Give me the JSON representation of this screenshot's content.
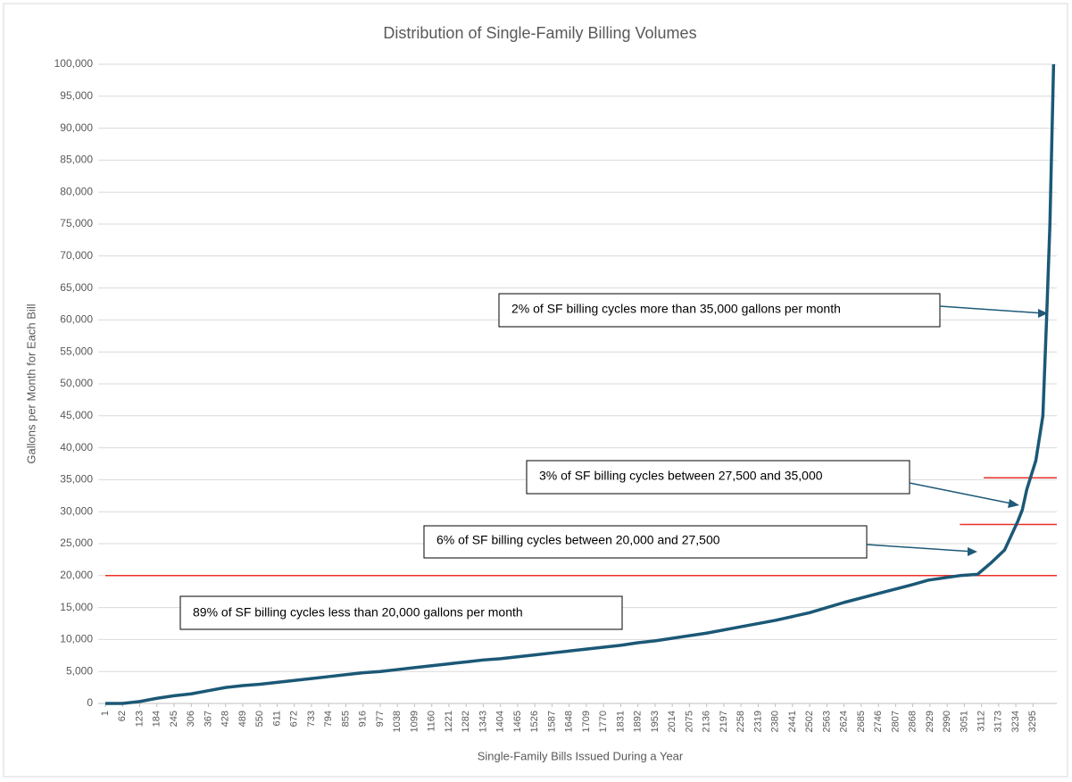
{
  "chart_data": {
    "type": "line",
    "title": "Distribution of Single-Family Billing Volumes",
    "x_label": "Single-Family Bills Issued During a Year",
    "y_label": "Gallons per Month for Each Bill",
    "color": "#1b5876",
    "grid": true,
    "x": [
      1,
      62,
      123,
      184,
      245,
      306,
      367,
      428,
      489,
      550,
      611,
      672,
      733,
      794,
      855,
      916,
      977,
      1038,
      1099,
      1160,
      1221,
      1282,
      1343,
      1404,
      1465,
      1526,
      1587,
      1648,
      1709,
      1770,
      1831,
      1892,
      1953,
      2014,
      2136,
      2258,
      2380,
      2502,
      2624,
      2746,
      2868,
      2924,
      3035,
      3098,
      3146,
      3194,
      3241,
      3257,
      3273,
      3305,
      3330,
      3343,
      3355,
      3368
    ],
    "values": [
      0,
      0,
      300,
      800,
      1200,
      1500,
      2000,
      2500,
      2800,
      3000,
      3300,
      3600,
      3900,
      4200,
      4500,
      4800,
      5000,
      5300,
      5600,
      5900,
      6200,
      6500,
      6800,
      7000,
      7300,
      7600,
      7900,
      8200,
      8500,
      8800,
      9100,
      9500,
      9800,
      10200,
      11000,
      12000,
      13000,
      14200,
      15800,
      17200,
      18600,
      19300,
      20000,
      20200,
      22000,
      24000,
      28500,
      30300,
      33500,
      38000,
      45000,
      60000,
      75000,
      100000
    ],
    "xlim": [
      1,
      3370
    ],
    "xticks": [
      1,
      62,
      123,
      184,
      245,
      306,
      367,
      428,
      489,
      550,
      611,
      672,
      733,
      794,
      855,
      916,
      977,
      1038,
      1099,
      1160,
      1221,
      1282,
      1343,
      1404,
      1465,
      1526,
      1587,
      1648,
      1709,
      1770,
      1831,
      1892,
      1953,
      2014,
      2075,
      2136,
      2197,
      2258,
      2319,
      2380,
      2441,
      2502,
      2563,
      2624,
      2685,
      2746,
      2807,
      2868,
      2929,
      2990,
      3051,
      3112,
      3173,
      3234,
      3295
    ],
    "ylim": [
      0,
      100000
    ],
    "yticks": [
      0,
      {
        "value": 5000,
        "label": "5,000"
      },
      {
        "value": 10000,
        "label": "10,000"
      },
      {
        "value": 15000,
        "label": "15,000"
      },
      {
        "value": 20000,
        "label": "20,000"
      },
      {
        "value": 25000,
        "label": "25,000"
      },
      {
        "value": 30000,
        "label": "30,000"
      },
      {
        "value": 35000,
        "label": "35,000"
      },
      {
        "value": 40000,
        "label": "40,000"
      },
      {
        "value": 45000,
        "label": "45,000"
      },
      {
        "value": 50000,
        "label": "50,000"
      },
      {
        "value": 55000,
        "label": "55,000"
      },
      {
        "value": 60000,
        "label": "60,000"
      },
      {
        "value": 65000,
        "label": "65,000"
      },
      {
        "value": 70000,
        "label": "70,000"
      },
      {
        "value": 75000,
        "label": "75,000"
      },
      {
        "value": 80000,
        "label": "80,000"
      },
      {
        "value": 85000,
        "label": "85,000"
      },
      {
        "value": 90000,
        "label": "90,000"
      },
      {
        "value": 95000,
        "label": "95,000"
      },
      {
        "value": 100000,
        "label": "100,000"
      }
    ],
    "reference_lines": [
      {
        "y": 20000,
        "x_start": 1,
        "color": "#e8302a"
      },
      {
        "y": 28000,
        "x_start": 3035,
        "color": "#e8302a"
      },
      {
        "y": 35300,
        "x_start": 3120,
        "color": "#e8302a"
      }
    ],
    "annotations": [
      "2% of SF billing cycles more than 35,000 gallons per month",
      "3% of SF billing cycles between 27,500 and 35,000",
      "6% of SF billing cycles between 20,000 and 27,500",
      "89% of SF billing cycles less than 20,000 gallons per month"
    ]
  }
}
